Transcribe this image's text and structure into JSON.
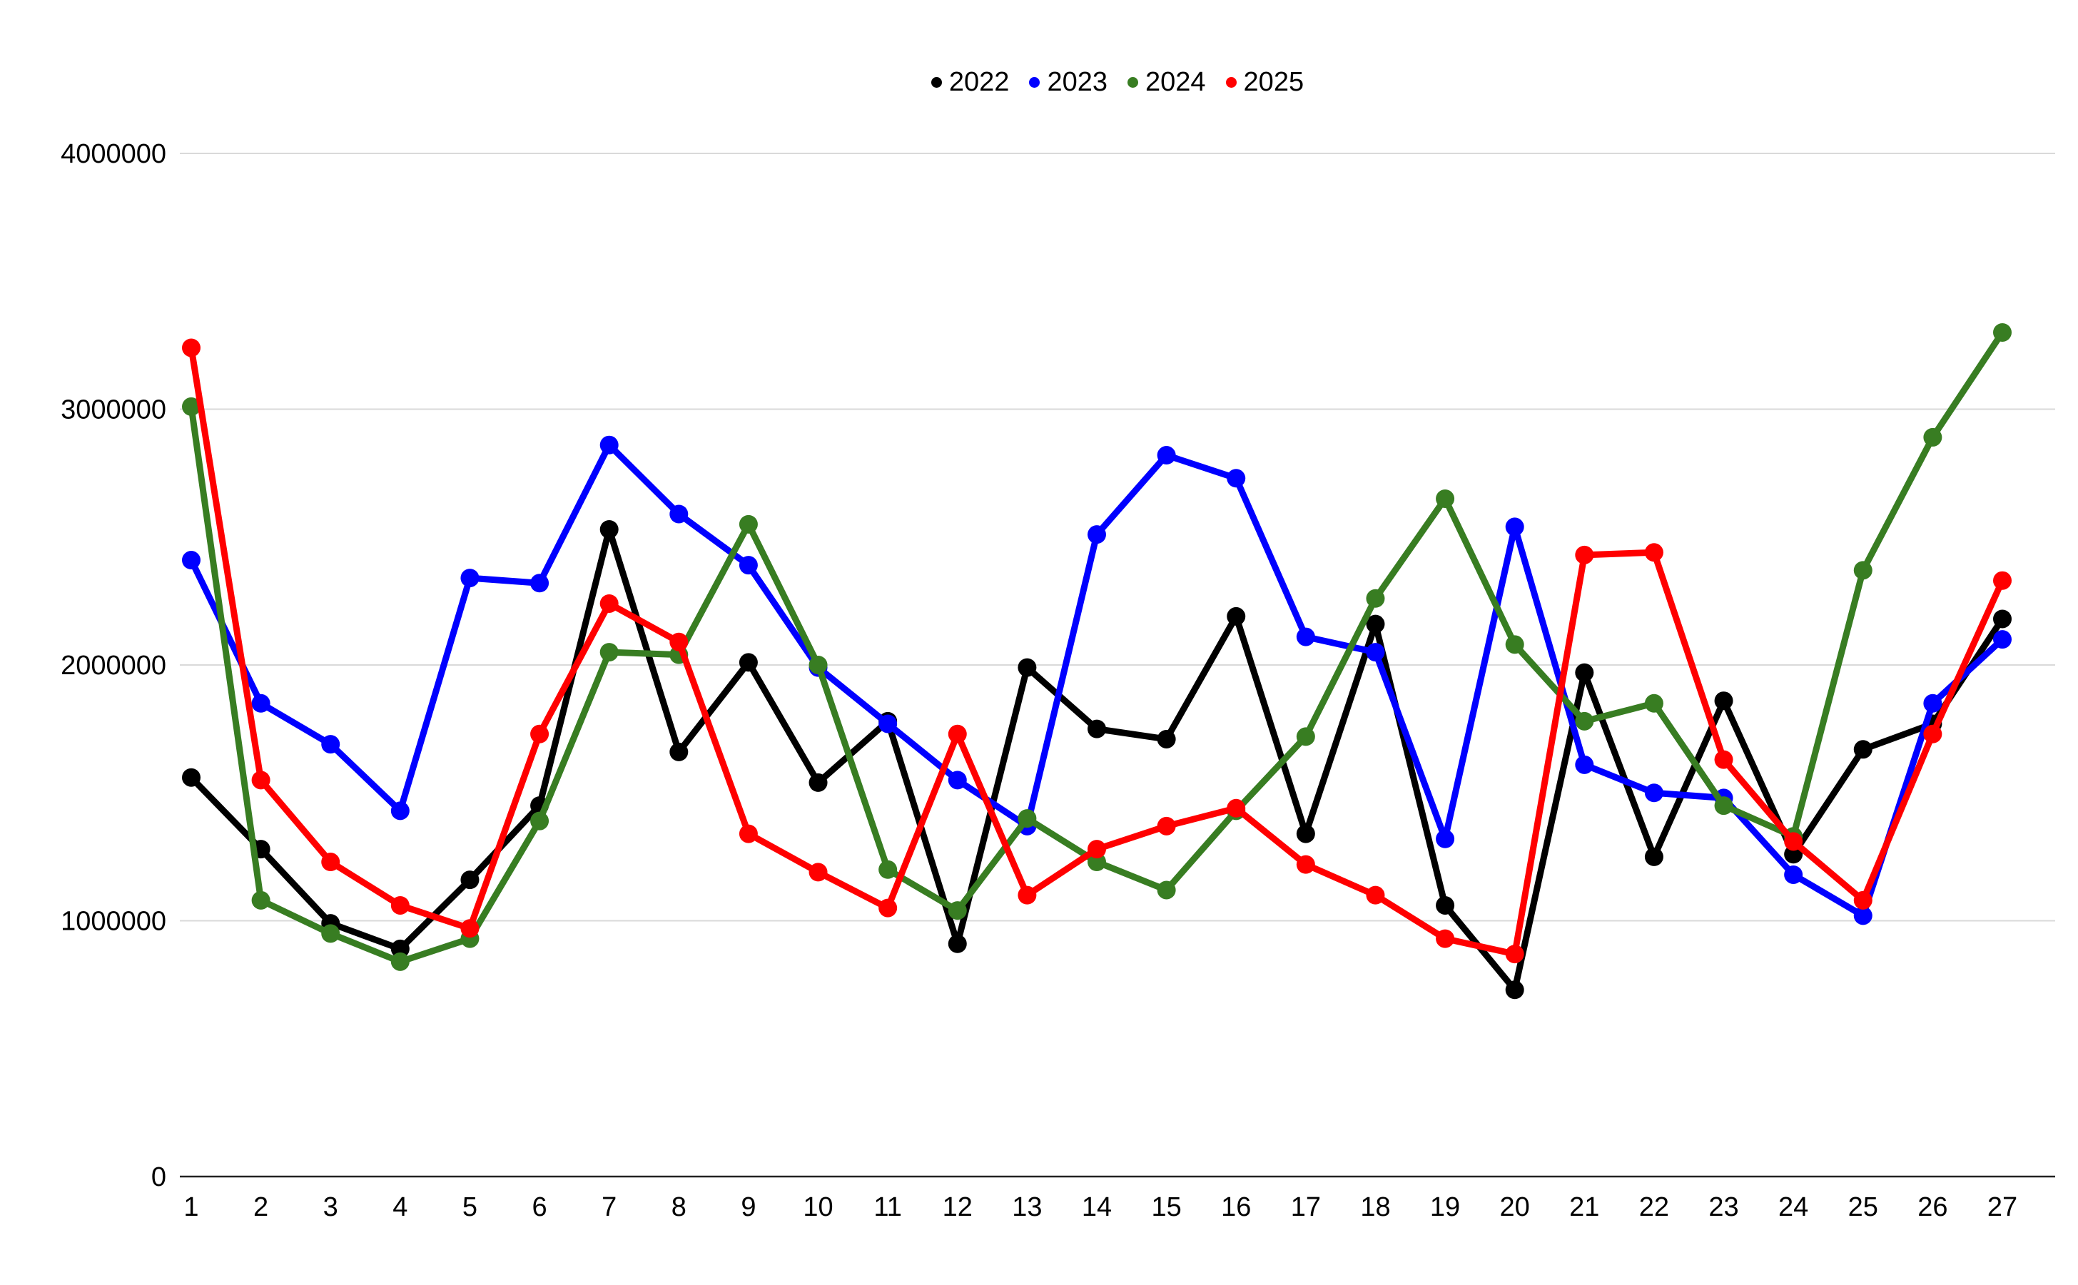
{
  "chart_data": {
    "type": "line",
    "title": "",
    "xlabel": "",
    "ylabel": "",
    "ylim": [
      0,
      4000000
    ],
    "grid": true,
    "legend_position": "top-center",
    "categories": [
      "1",
      "2",
      "3",
      "4",
      "5",
      "6",
      "7",
      "8",
      "9",
      "10",
      "11",
      "12",
      "13",
      "14",
      "15",
      "16",
      "17",
      "18",
      "19",
      "20",
      "21",
      "22",
      "23",
      "24",
      "25",
      "26",
      "27"
    ],
    "series": [
      {
        "name": "2022",
        "color": "#000000",
        "values": [
          1560000,
          1280000,
          990000,
          890000,
          1160000,
          1450000,
          2530000,
          1660000,
          2010000,
          1540000,
          1780000,
          910000,
          1990000,
          1750000,
          1710000,
          2190000,
          1340000,
          2160000,
          1060000,
          730000,
          1970000,
          1250000,
          1860000,
          1260000,
          1670000,
          1770000,
          2180000
        ]
      },
      {
        "name": "2023",
        "color": "#0000ff",
        "values": [
          2410000,
          1850000,
          1690000,
          1430000,
          2340000,
          2320000,
          2860000,
          2590000,
          2390000,
          1990000,
          1770000,
          1550000,
          1370000,
          2510000,
          2820000,
          2730000,
          2110000,
          2050000,
          1320000,
          2540000,
          1610000,
          1500000,
          1480000,
          1180000,
          1020000,
          1850000,
          2100000
        ]
      },
      {
        "name": "2024",
        "color": "#387d22",
        "values": [
          3010000,
          1080000,
          950000,
          840000,
          930000,
          1390000,
          2050000,
          2040000,
          2550000,
          2000000,
          1200000,
          1040000,
          1400000,
          1230000,
          1120000,
          1430000,
          1720000,
          2260000,
          2650000,
          2080000,
          1780000,
          1850000,
          1450000,
          1330000,
          2370000,
          2890000,
          3300000
        ]
      },
      {
        "name": "2025",
        "color": "#ff0000",
        "values": [
          3240000,
          1550000,
          1230000,
          1060000,
          970000,
          1730000,
          2240000,
          2090000,
          1340000,
          1190000,
          1050000,
          1730000,
          1100000,
          1280000,
          1370000,
          1440000,
          1220000,
          1100000,
          930000,
          870000,
          2430000,
          2440000,
          1630000,
          1310000,
          1080000,
          1730000,
          2330000
        ]
      }
    ]
  },
  "y_axis": {
    "ticks": [
      "0",
      "1000000",
      "2000000",
      "3000000",
      "4000000"
    ],
    "tick_values": [
      0,
      1000000,
      2000000,
      3000000,
      4000000
    ]
  },
  "x_axis": {
    "labels": [
      "1",
      "2",
      "3",
      "4",
      "5",
      "6",
      "7",
      "8",
      "9",
      "10",
      "11",
      "12",
      "13",
      "14",
      "15",
      "16",
      "17",
      "18",
      "19",
      "20",
      "21",
      "22",
      "23",
      "24",
      "25",
      "26",
      "27"
    ]
  },
  "colors": {
    "background": "#ffffff",
    "gridline": "#d9d9d9",
    "axis_line": "#212121",
    "label_text": "#000000"
  }
}
